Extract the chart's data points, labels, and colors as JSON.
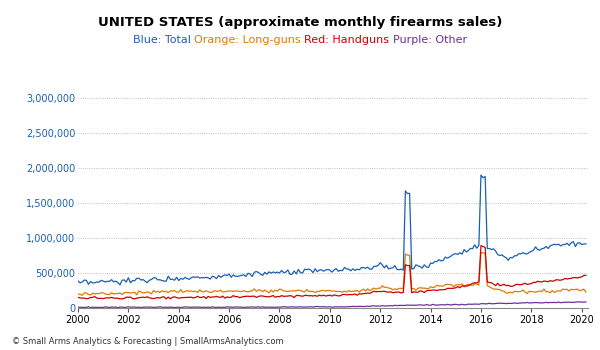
{
  "title": "UNITED STATES (approximate monthly firearms sales)",
  "subtitle_parts": [
    {
      "text": "Blue: Total ",
      "color": "#1a5fb4"
    },
    {
      "text": "Orange: Long-guns ",
      "color": "#e07b00"
    },
    {
      "text": "Red: Handguns ",
      "color": "#cc0000"
    },
    {
      "text": "Purple: Other",
      "color": "#7030a0"
    }
  ],
  "footer": "© Small Arms Analytics & Forecasting | SmallArmsAnalytics.com",
  "xlim": [
    2000.0,
    2020.25
  ],
  "ylim": [
    0,
    3000000
  ],
  "yticks": [
    0,
    500000,
    1000000,
    1500000,
    2000000,
    2500000,
    3000000
  ],
  "xticks": [
    2000,
    2002,
    2004,
    2006,
    2008,
    2010,
    2012,
    2014,
    2016,
    2018,
    2020
  ],
  "colors": {
    "total": "#1a5fb4",
    "longgun": "#e07b00",
    "handgun": "#cc0000",
    "other": "#7030a0"
  },
  "background_color": "#ffffff",
  "grid_color": "#aaaaaa",
  "tick_color": "#1a5fb4",
  "line_width": 0.9
}
